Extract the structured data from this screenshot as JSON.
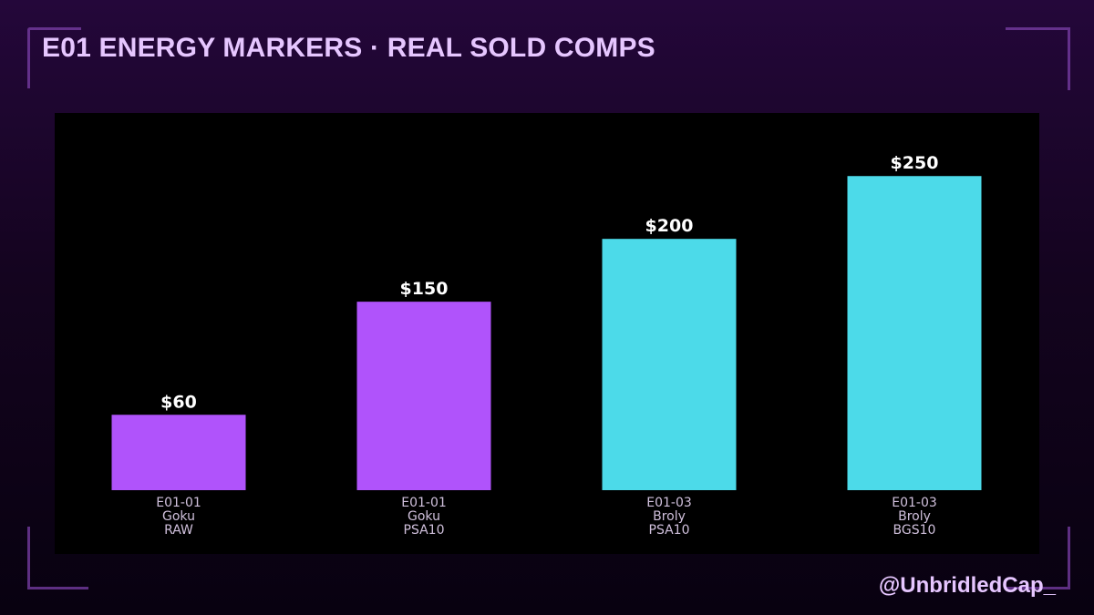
{
  "header": {
    "title": "E01 ENERGY MARKERS · REAL SOLD COMPS"
  },
  "footer": {
    "handle": "@UnbridledCap_"
  },
  "colors": {
    "purple": "#b053fb",
    "cyan": "#4cdae9",
    "label": "#ffffff",
    "tick": "#d0c0dc"
  },
  "chart_data": {
    "type": "bar",
    "title": "",
    "xlabel": "",
    "ylabel": "",
    "ylim": [
      0,
      277
    ],
    "grid": false,
    "categories": [
      [
        "E01-01",
        "Goku",
        "RAW"
      ],
      [
        "E01-01",
        "Goku",
        "PSA10"
      ],
      [
        "E01-03",
        "Broly",
        "PSA10"
      ],
      [
        "E01-03",
        "Broly",
        "BGS10"
      ]
    ],
    "values": [
      60,
      150,
      200,
      250
    ],
    "value_labels": [
      "$60",
      "$150",
      "$200",
      "$250"
    ],
    "bar_colors": [
      "purple",
      "purple",
      "cyan",
      "cyan"
    ]
  }
}
